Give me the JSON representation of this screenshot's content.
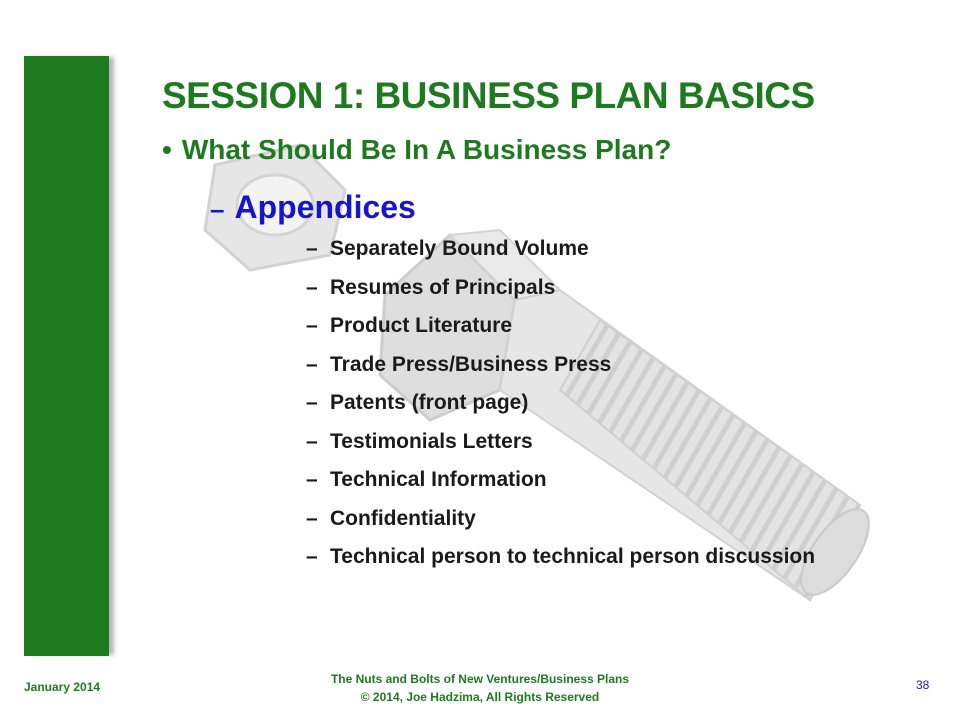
{
  "slide": {
    "title": "SESSION 1:  BUSINESS PLAN BASICS",
    "subtitle": "What Should Be In A Business Plan?",
    "section": "Appendices",
    "items": [
      "Separately Bound Volume",
      "Resumes of Principals",
      "Product Literature",
      "Trade Press/Business Press",
      "Patents (front page)",
      "Testimonials Letters",
      "Technical Information",
      "Confidentiality",
      "Technical person to technical person discussion"
    ]
  },
  "footer": {
    "date": "January 2014",
    "course": "The Nuts and Bolts of New Ventures/Business Plans",
    "copyright": "© 2014, Joe Hadzima, All Rights Reserved",
    "page_number": "38"
  },
  "icons": {
    "watermark": "nut-and-bolt-icon",
    "bullet": "•",
    "dash": "–"
  },
  "colors": {
    "sidebar": "#1E7A1E",
    "title": "#1E7A1E",
    "section": "#1515CC",
    "footer_text": "#1E7A1E",
    "page_number": "#1515CC"
  }
}
